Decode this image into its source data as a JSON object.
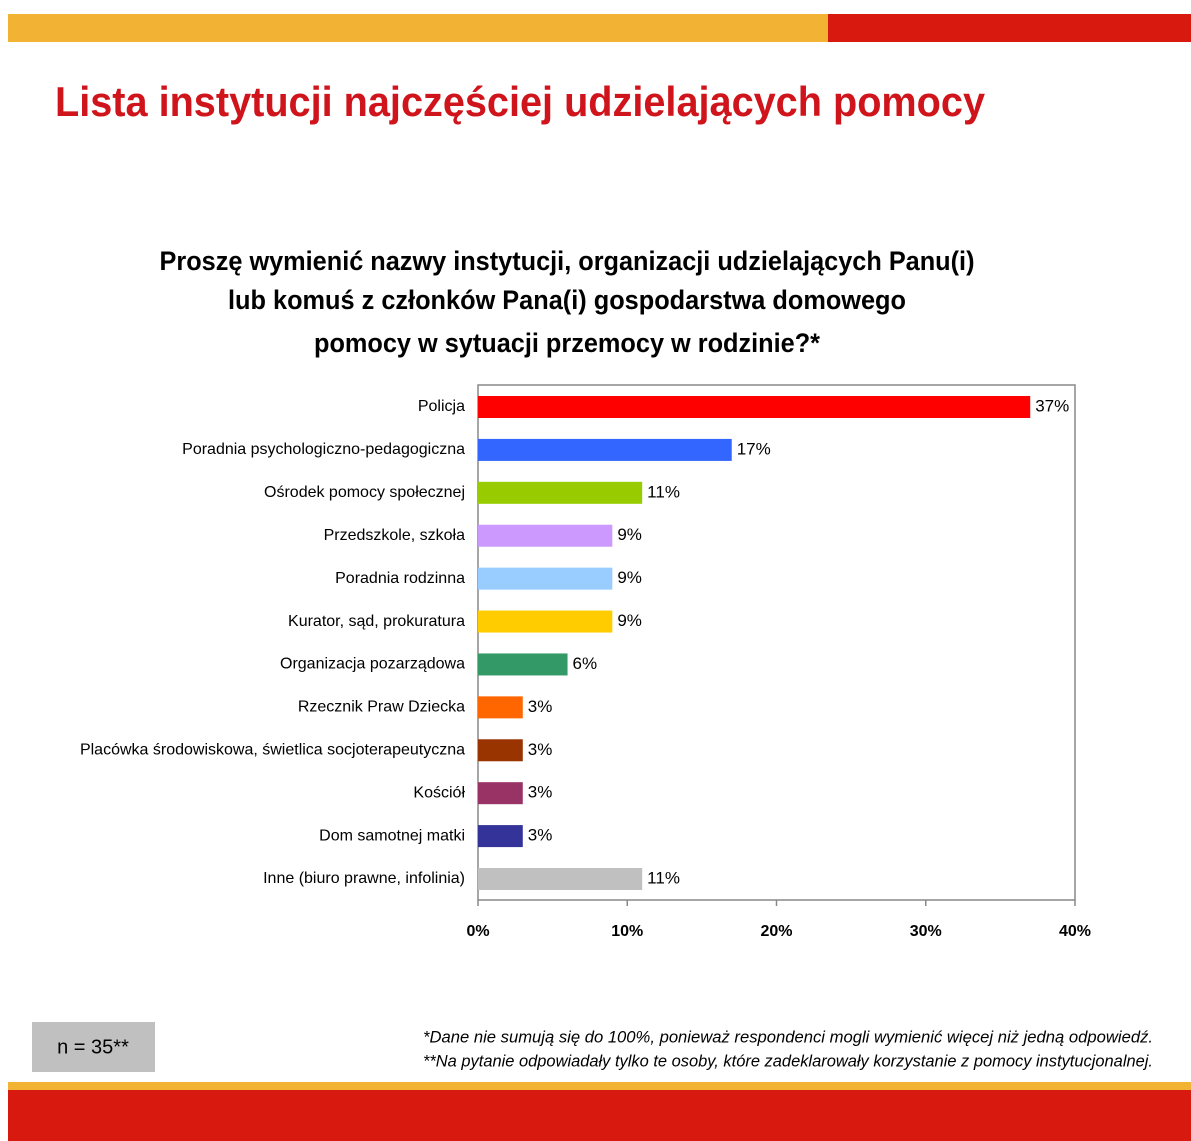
{
  "header": {
    "title": "Lista instytucji najczęściej udzielających pomocy"
  },
  "footer": {
    "sample": "n = 35**",
    "notes": [
      "*Dane nie sumują się do 100%, ponieważ respondenci mogli wymienić więcej niż jedną odpowiedź.",
      "**Na pytanie odpowiadały tylko te osoby, które zadeklarowały korzystanie z pomocy instytucjonalnej."
    ]
  },
  "chart_data": {
    "type": "bar",
    "orientation": "horizontal",
    "title": [
      "Proszę wymienić nazwy instytucji, organizacji udzielających Panu(i)",
      "lub komuś z członków Pana(i) gospodarstwa domowego",
      "pomocy w sytuacji przemocy w rodzinie?*"
    ],
    "categories": [
      "Policja",
      "Poradnia psychologiczno-pedagogiczna",
      "Ośrodek pomocy społecznej",
      "Przedszkole, szkoła",
      "Poradnia rodzinna",
      "Kurator, sąd, prokuratura",
      "Organizacja pozarządowa",
      "Rzecznik Praw Dziecka",
      "Placówka środowiskowa, świetlica socjoterapeutyczna",
      "Kościół",
      "Dom samotnej matki",
      "Inne (biuro prawne, infolinia)"
    ],
    "values": [
      37,
      17,
      11,
      9,
      9,
      9,
      6,
      3,
      3,
      3,
      3,
      11
    ],
    "value_labels": [
      "37%",
      "17%",
      "11%",
      "9%",
      "9%",
      "9%",
      "6%",
      "3%",
      "3%",
      "3%",
      "3%",
      "11%"
    ],
    "colors": [
      "#ff0000",
      "#3366ff",
      "#99cc00",
      "#cc99ff",
      "#99ccff",
      "#ffcc00",
      "#339966",
      "#ff6600",
      "#993300",
      "#993366",
      "#333399",
      "#c0c0c0"
    ],
    "xlim": [
      0,
      40
    ],
    "xticks": [
      {
        "value": 0,
        "label": "0%"
      },
      {
        "value": 10,
        "label": "10%"
      },
      {
        "value": 20,
        "label": "20%"
      },
      {
        "value": 30,
        "label": "30%"
      },
      {
        "value": 40,
        "label": "40%"
      }
    ]
  }
}
